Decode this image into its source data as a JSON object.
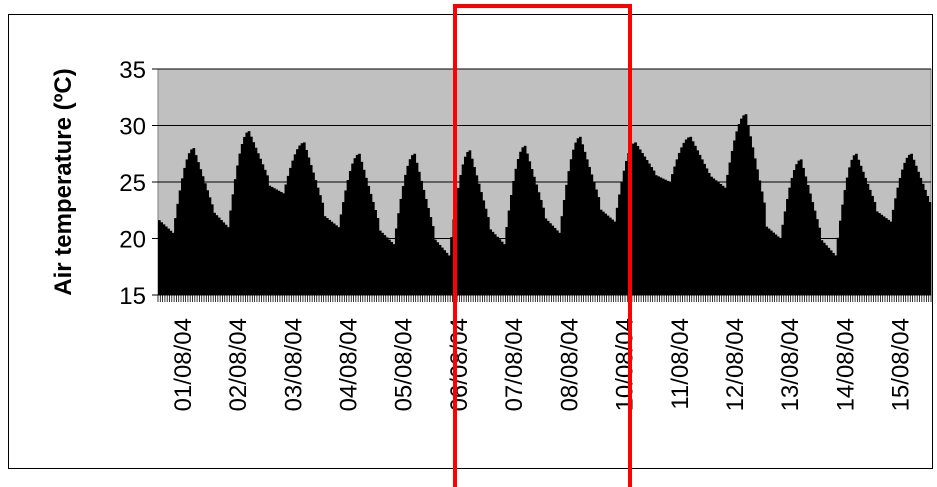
{
  "chart_data": {
    "type": "bar",
    "title": "",
    "xlabel": "",
    "ylabel": "Air temperature (ºC)",
    "ylim": [
      15,
      35
    ],
    "yticks": [
      "15",
      "20",
      "25",
      "30",
      "35"
    ],
    "gridlines": true,
    "legend": "none",
    "categories": [
      "01/08/04",
      "02/08/04",
      "03/08/04",
      "04/08/04",
      "05/08/04",
      "06/08/04",
      "07/08/04",
      "08/08/04",
      "10/08/04",
      "11/08/04",
      "12/08/04",
      "13/08/04",
      "14/08/04",
      "15/08/04"
    ],
    "series": [
      {
        "daily_min": [
          20.5,
          21.0,
          24.0,
          21.0,
          19.5,
          18.5,
          19.5,
          20.5,
          21.5,
          25.0,
          24.5,
          20.0,
          18.5,
          21.5
        ],
        "daily_max": [
          28.0,
          29.5,
          28.5,
          27.5,
          27.5,
          27.8,
          28.2,
          29.0,
          28.5,
          29.0,
          31.0,
          27.0,
          27.5,
          27.5
        ]
      }
    ],
    "colors": {
      "bars": "#000000",
      "plot_bg": "#c0c0c0",
      "highlight": "#ff0000"
    },
    "annotation": "highlighted period 06/08/04 – 10/08/04"
  }
}
